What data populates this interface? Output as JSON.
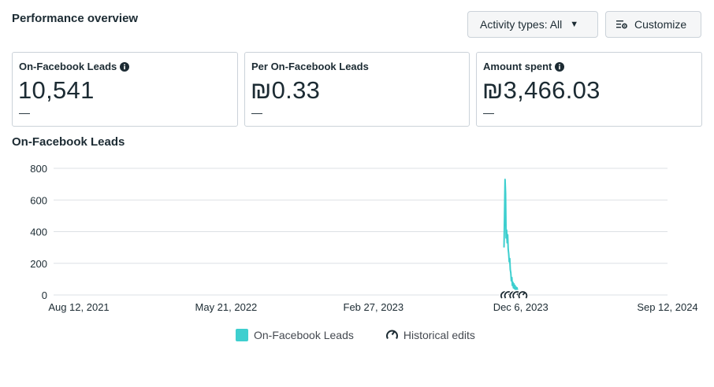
{
  "header": {
    "title": "Performance overview",
    "activity_button": "Activity types: All",
    "customize_button": "Customize"
  },
  "cards": [
    {
      "label": "On-Facebook Leads",
      "value": "10,541",
      "delta": "—",
      "has_info": true
    },
    {
      "label": "Per On-Facebook Leads",
      "value": "₪0.33",
      "delta": "—",
      "has_info": false
    },
    {
      "label": "Amount spent",
      "value": "₪3,466.03",
      "delta": "—",
      "has_info": true
    }
  ],
  "chart_section_title": "On-Facebook Leads",
  "colors": {
    "series": "#3ecfcf",
    "grid": "#dde1e5",
    "text": "#1c2b33"
  },
  "chart_data": {
    "type": "line",
    "title": "On-Facebook Leads",
    "xlabel": "",
    "ylabel": "",
    "ylim": [
      0,
      800
    ],
    "yticks": [
      "0",
      "200",
      "400",
      "600",
      "800"
    ],
    "xticks": [
      {
        "label": "Aug 12, 2021",
        "date": "2021-08-12"
      },
      {
        "label": "May 21, 2022",
        "date": "2022-05-21"
      },
      {
        "label": "Feb 27, 2023",
        "date": "2023-02-27"
      },
      {
        "label": "Dec 6, 2023",
        "date": "2023-12-06"
      },
      {
        "label": "Sep 12, 2024",
        "date": "2024-09-12"
      }
    ],
    "grid": true,
    "legend_position": "bottom",
    "series": [
      {
        "name": "On-Facebook Leads",
        "points": [
          {
            "x": "2023-11-04",
            "y": 300
          },
          {
            "x": "2023-11-05",
            "y": 500
          },
          {
            "x": "2023-11-06",
            "y": 730
          },
          {
            "x": "2023-11-07",
            "y": 640
          },
          {
            "x": "2023-11-08",
            "y": 360
          },
          {
            "x": "2023-11-09",
            "y": 410
          },
          {
            "x": "2023-11-10",
            "y": 330
          },
          {
            "x": "2023-11-11",
            "y": 380
          },
          {
            "x": "2023-11-12",
            "y": 290
          },
          {
            "x": "2023-11-13",
            "y": 260
          },
          {
            "x": "2023-11-14",
            "y": 210
          },
          {
            "x": "2023-11-15",
            "y": 230
          },
          {
            "x": "2023-11-16",
            "y": 160
          },
          {
            "x": "2023-11-17",
            "y": 140
          },
          {
            "x": "2023-11-18",
            "y": 90
          },
          {
            "x": "2023-11-19",
            "y": 110
          },
          {
            "x": "2023-11-20",
            "y": 60
          },
          {
            "x": "2023-11-21",
            "y": 80
          },
          {
            "x": "2023-11-22",
            "y": 45
          },
          {
            "x": "2023-11-23",
            "y": 70
          },
          {
            "x": "2023-11-24",
            "y": 40
          },
          {
            "x": "2023-11-25",
            "y": 60
          },
          {
            "x": "2023-11-26",
            "y": 35
          },
          {
            "x": "2023-11-27",
            "y": 50
          },
          {
            "x": "2023-11-28",
            "y": 30
          },
          {
            "x": "2023-11-29",
            "y": 45
          },
          {
            "x": "2023-11-30",
            "y": 25
          },
          {
            "x": "2023-12-01",
            "y": 20
          },
          {
            "x": "2023-12-02",
            "y": 10
          },
          {
            "x": "2023-12-03",
            "y": 5
          },
          {
            "x": "2023-12-04",
            "y": 15
          },
          {
            "x": "2023-12-05",
            "y": 10
          },
          {
            "x": "2023-12-06",
            "y": 8
          },
          {
            "x": "2023-12-07",
            "y": 18
          },
          {
            "x": "2023-12-08",
            "y": 12
          }
        ]
      }
    ],
    "historical_edits": [
      "2023-11-06",
      "2023-11-13",
      "2023-11-23",
      "2023-11-29",
      "2023-12-10"
    ]
  },
  "legend": {
    "series_label": "On-Facebook Leads",
    "edits_label": "Historical edits"
  }
}
